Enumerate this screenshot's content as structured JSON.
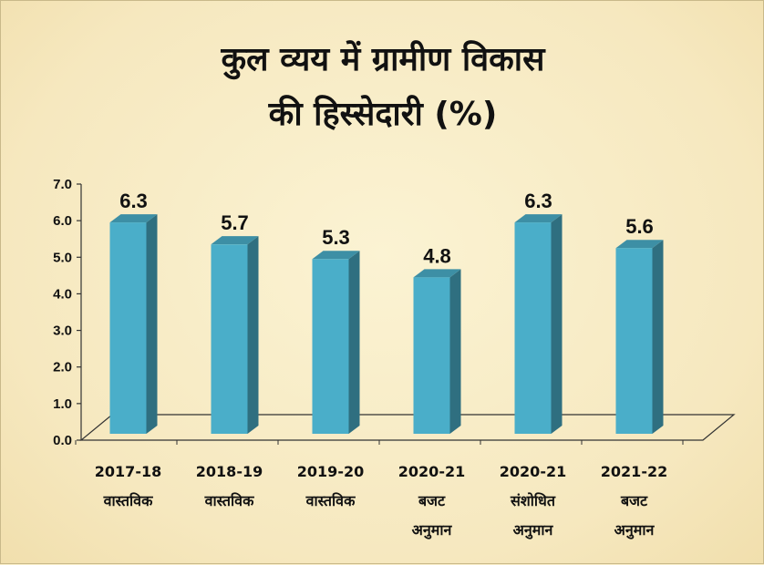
{
  "chart_data": {
    "type": "bar",
    "title": "कुल व्यय में ग्रामीण विकास",
    "subtitle": "की हिस्सेदारी (%)",
    "categories": [
      [
        "2017-18",
        "वास्तविक"
      ],
      [
        "2018-19",
        "वास्तविक"
      ],
      [
        "2019-20",
        "वास्तविक"
      ],
      [
        "2020-21",
        "बजट",
        "अनुमान"
      ],
      [
        "2020-21",
        "संशोधित",
        "अनुमान"
      ],
      [
        "2021-22",
        "बजट",
        "अनुमान"
      ]
    ],
    "values": [
      6.3,
      5.7,
      5.3,
      4.8,
      6.3,
      5.6
    ],
    "data_labels": [
      "6.3",
      "5.7",
      "5.3",
      "4.8",
      "6.3",
      "5.6"
    ],
    "yticks": [
      "0.0",
      "1.0",
      "2.0",
      "3.0",
      "4.0",
      "5.0",
      "6.0",
      "7.0"
    ],
    "ylim": [
      0,
      7
    ],
    "xlabel": "",
    "ylabel": "",
    "grid": false,
    "legend": "none",
    "colors": {
      "bar_front": "#4aaec9",
      "bar_side": "#2f6f80",
      "bar_top": "#3d8fa5",
      "axis": "#333333",
      "background": "#f7ecc6"
    }
  }
}
